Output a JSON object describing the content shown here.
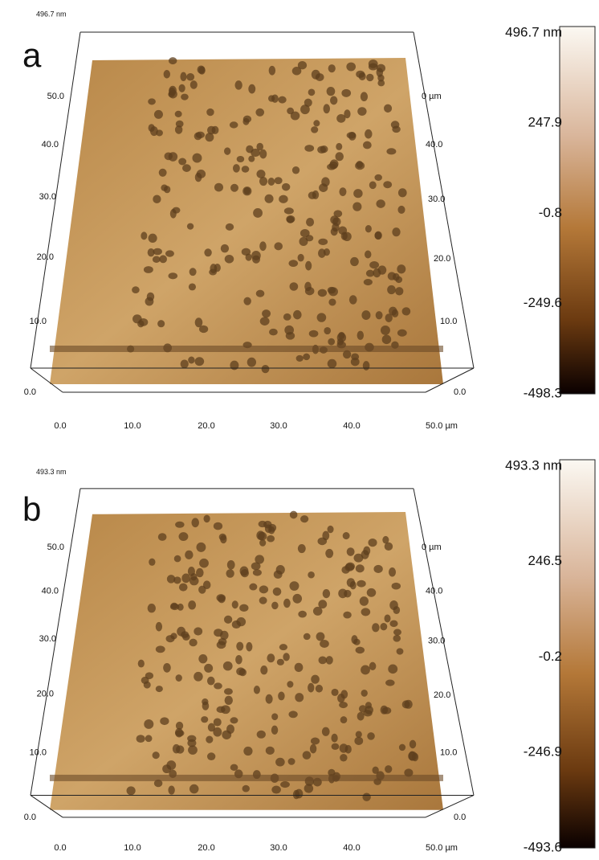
{
  "panels": [
    {
      "letter": "a",
      "z_label": "496.7 nm",
      "y_left": [
        "50.0",
        "40.0",
        "30.0",
        "20.0",
        "10.0",
        "0.0"
      ],
      "y_right": [
        "0 µm",
        "40.0",
        "30.0",
        "20.0",
        "10.0",
        "0.0"
      ],
      "x_labels": [
        "0.0",
        "10.0",
        "20.0",
        "30.0",
        "40.0",
        "50.0 µm"
      ],
      "colorbar": [
        "496.7 nm",
        "247.9",
        "-0.8",
        "-249.6",
        "-498.3"
      ]
    },
    {
      "letter": "b",
      "z_label": "493.3 nm",
      "y_left": [
        "50.0",
        "40.0",
        "30.0",
        "20.0",
        "10.0",
        "0.0"
      ],
      "y_right": [
        "0 µm",
        "40.0",
        "30.0",
        "20.0",
        "10.0",
        "0.0"
      ],
      "x_labels": [
        "0.0",
        "10.0",
        "20.0",
        "30.0",
        "40.0",
        "50.0 µm"
      ],
      "colorbar": [
        "493.3 nm",
        "246.5",
        "-0.2",
        "-246.9",
        "-493.6"
      ]
    }
  ]
}
